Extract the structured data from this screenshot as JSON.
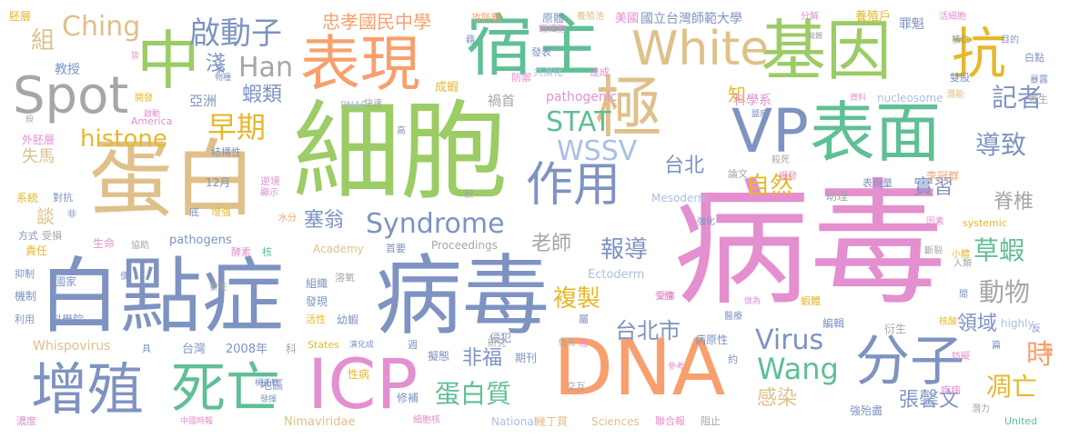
{
  "colors": {
    "green": "#9ccc65",
    "blue": "#7e93c2",
    "pink": "#e48fcf",
    "orange": "#f7a06e",
    "teal": "#5fbf95",
    "gold": "#e6b829",
    "tan": "#e0c08a",
    "gray": "#a6a6a6",
    "lightblue": "#a9bfe6"
  },
  "words": [
    {
      "text": "病毒"
    },
    {
      "text": "細胞"
    },
    {
      "text": "白點症"
    },
    {
      "text": "病毒"
    },
    {
      "text": "蛋白"
    },
    {
      "text": "DNA"
    },
    {
      "text": "ICP"
    },
    {
      "text": "中"
    },
    {
      "text": "基因"
    },
    {
      "text": "宿主"
    },
    {
      "text": "表現"
    },
    {
      "text": "表面"
    },
    {
      "text": "極"
    },
    {
      "text": "VP"
    },
    {
      "text": "White"
    },
    {
      "text": "Spot"
    },
    {
      "text": "抗"
    },
    {
      "text": "作用"
    },
    {
      "text": "增殖"
    },
    {
      "text": "死亡"
    },
    {
      "text": "分子"
    },
    {
      "text": "Syndrome"
    },
    {
      "text": "啟動子"
    },
    {
      "text": "早期"
    },
    {
      "text": "histone"
    },
    {
      "text": "Ching"
    },
    {
      "text": "Han"
    },
    {
      "text": "蝦類"
    },
    {
      "text": "忠孝國民中學"
    },
    {
      "text": "國立台灣師範大學"
    },
    {
      "text": "WSSV"
    },
    {
      "text": "STAT"
    },
    {
      "text": "Virus"
    },
    {
      "text": "Wang"
    },
    {
      "text": "蛋白質"
    },
    {
      "text": "複製"
    },
    {
      "text": "報導"
    },
    {
      "text": "台北市"
    },
    {
      "text": "台北"
    },
    {
      "text": "自然"
    },
    {
      "text": "記者"
    },
    {
      "text": "導致"
    },
    {
      "text": "脊椎"
    },
    {
      "text": "實習"
    },
    {
      "text": "草蝦"
    },
    {
      "text": "動物"
    },
    {
      "text": "領域"
    },
    {
      "text": "凋亡"
    },
    {
      "text": "時"
    },
    {
      "text": "感染"
    },
    {
      "text": "張馨文"
    },
    {
      "text": "非福"
    },
    {
      "text": "塞翁"
    },
    {
      "text": "老師"
    },
    {
      "text": "知"
    },
    {
      "text": "組"
    },
    {
      "text": "淺"
    },
    {
      "text": "談"
    },
    {
      "text": "失馬"
    },
    {
      "text": "亞洲"
    },
    {
      "text": "教授"
    },
    {
      "text": "科學系"
    },
    {
      "text": "美國"
    },
    {
      "text": "養殖戶"
    },
    {
      "text": "罪魁"
    },
    {
      "text": "禍首"
    },
    {
      "text": "成蝦"
    },
    {
      "text": "pathogenic"
    },
    {
      "text": "PNAS"
    },
    {
      "text": "nucleosome"
    },
    {
      "text": "Mesoderm"
    },
    {
      "text": "Ectoderm"
    },
    {
      "text": "pathogens"
    },
    {
      "text": "Proceedings"
    },
    {
      "text": "Academy"
    },
    {
      "text": "Whispovirus"
    },
    {
      "text": "Nimaviridae"
    },
    {
      "text": "National"
    },
    {
      "text": "Sciences"
    },
    {
      "text": "States"
    },
    {
      "text": "United"
    },
    {
      "text": "America"
    },
    {
      "text": "systemic"
    },
    {
      "text": "highly"
    },
    {
      "text": "2008年"
    },
    {
      "text": "台灣"
    },
    {
      "text": "12月"
    },
    {
      "text": "生命"
    },
    {
      "text": "責任"
    },
    {
      "text": "國家"
    },
    {
      "text": "科學院"
    },
    {
      "text": "地區"
    },
    {
      "text": "性病"
    },
    {
      "text": "組織"
    },
    {
      "text": "發現"
    },
    {
      "text": "幼蝦"
    },
    {
      "text": "期刊"
    },
    {
      "text": "侵犯"
    },
    {
      "text": "交互"
    },
    {
      "text": "病原性"
    },
    {
      "text": "編輯"
    },
    {
      "text": "衍生"
    },
    {
      "text": "李冠群"
    },
    {
      "text": "助理"
    },
    {
      "text": "表現量"
    },
    {
      "text": "論文"
    },
    {
      "text": "胚層"
    },
    {
      "text": "外胚層"
    },
    {
      "text": "系統"
    },
    {
      "text": "對抗"
    },
    {
      "text": "方式"
    },
    {
      "text": "受損"
    },
    {
      "text": "抑制"
    },
    {
      "text": "機制"
    },
    {
      "text": "利用"
    },
    {
      "text": "濃度"
    },
    {
      "text": "酵素"
    },
    {
      "text": "核"
    },
    {
      "text": "溶氧"
    },
    {
      "text": "活性"
    },
    {
      "text": "首要"
    },
    {
      "text": "週"
    },
    {
      "text": "研究"
    },
    {
      "text": "擬態"
    },
    {
      "text": "修補"
    },
    {
      "text": "幾丁質"
    },
    {
      "text": "聯合報"
    },
    {
      "text": "阻止"
    },
    {
      "text": "殆盡"
    },
    {
      "text": "強"
    },
    {
      "text": "疾病"
    },
    {
      "text": "細胞核"
    },
    {
      "text": "中國時報"
    },
    {
      "text": "發揮"
    },
    {
      "text": "楊正敏"
    },
    {
      "text": "攻防戰"
    },
    {
      "text": "原體"
    },
    {
      "text": "養殖池"
    },
    {
      "text": "分解"
    },
    {
      "text": "活細胞"
    },
    {
      "text": "蝦細胞"
    },
    {
      "text": "發表"
    },
    {
      "text": "共演化"
    },
    {
      "text": "達成"
    },
    {
      "text": "防禦"
    },
    {
      "text": "核仁"
    },
    {
      "text": "目的"
    },
    {
      "text": "白點"
    },
    {
      "text": "雙股"
    },
    {
      "text": "寄生"
    },
    {
      "text": "潛能"
    },
    {
      "text": "資料"
    },
    {
      "text": "鹽度"
    },
    {
      "text": "殺死"
    },
    {
      "text": "逆境"
    },
    {
      "text": "顯示"
    },
    {
      "text": "增強"
    },
    {
      "text": "底"
    },
    {
      "text": "水分"
    },
    {
      "text": "結構性"
    },
    {
      "text": "快速"
    },
    {
      "text": "高"
    },
    {
      "text": "新"
    },
    {
      "text": "開發"
    },
    {
      "text": "啟動"
    },
    {
      "text": "殺"
    },
    {
      "text": "協助"
    },
    {
      "text": "因素"
    },
    {
      "text": "斷裂"
    },
    {
      "text": "人類"
    },
    {
      "text": "間"
    },
    {
      "text": "小體"
    },
    {
      "text": "強化"
    },
    {
      "text": "做為"
    },
    {
      "text": "蝦體"
    },
    {
      "text": "醫療"
    },
    {
      "text": "核酸"
    },
    {
      "text": "篇"
    },
    {
      "text": "妨礙"
    },
    {
      "text": "潛力"
    },
    {
      "text": "受體"
    },
    {
      "text": "屬"
    },
    {
      "text": "癌"
    },
    {
      "text": "情況"
    },
    {
      "text": "參考"
    },
    {
      "text": "約"
    },
    {
      "text": "具"
    },
    {
      "text": "便"
    },
    {
      "text": "發生"
    },
    {
      "text": "演化成"
    },
    {
      "text": "非"
    },
    {
      "text": "物種"
    },
    {
      "text": "跨"
    },
    {
      "text": "皆"
    },
    {
      "text": "藉"
    },
    {
      "text": "載體"
    },
    {
      "text": "暴露"
    },
    {
      "text": "科"
    },
    {
      "text": "蝦"
    },
    {
      "text": "反"
    },
    {
      "text": "受傷"
    },
    {
      "text": "爆發"
    }
  ]
}
